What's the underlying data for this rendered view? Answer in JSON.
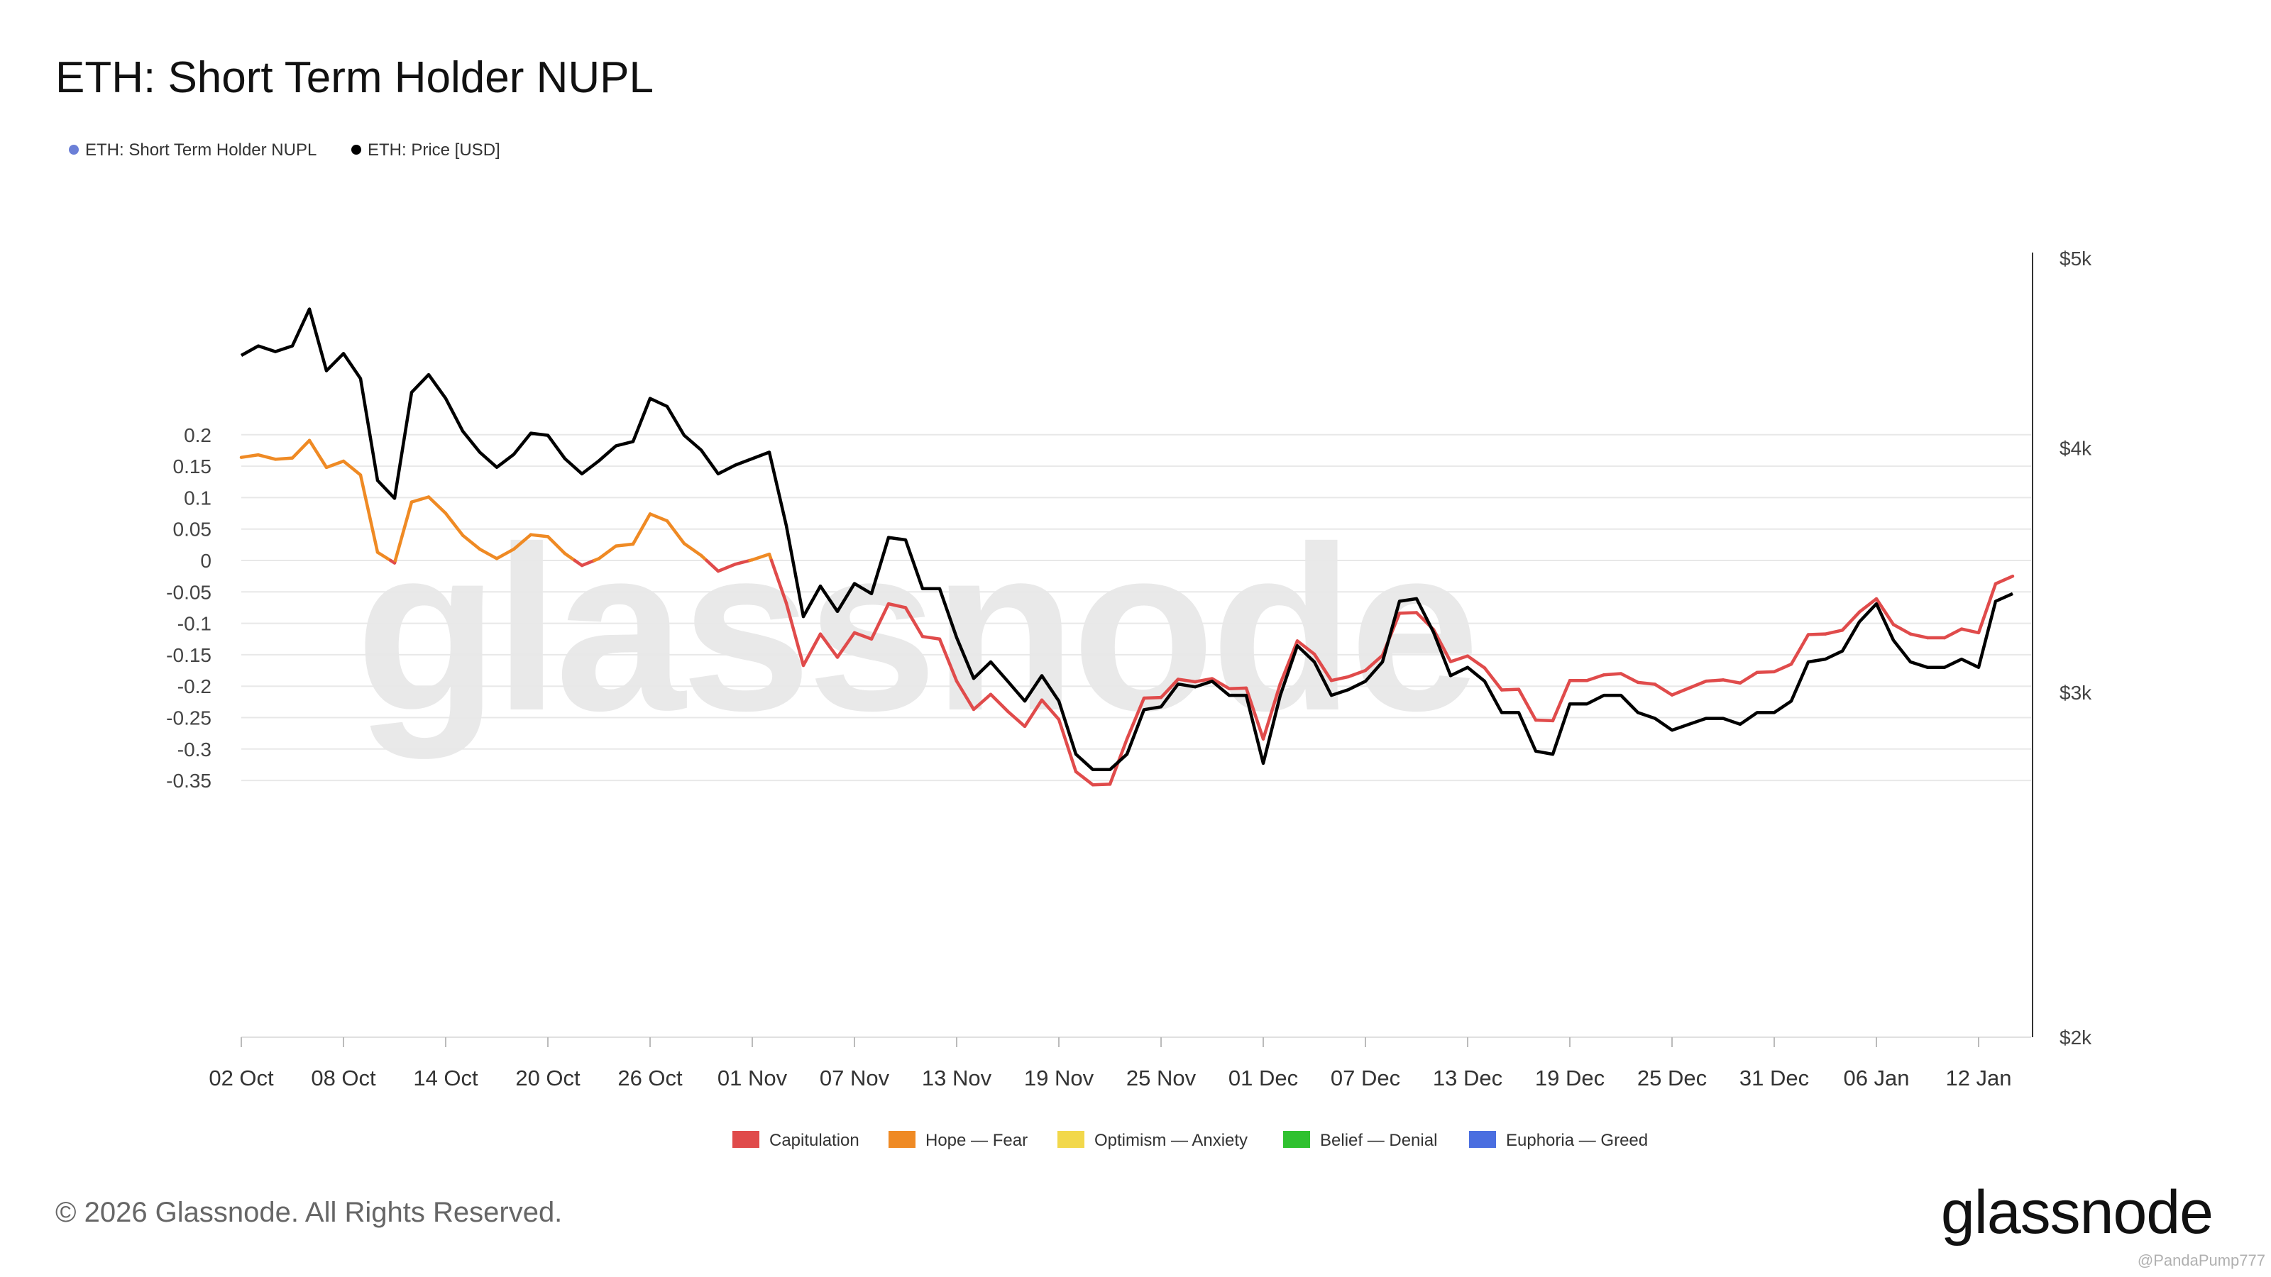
{
  "chart_data": {
    "type": "line",
    "title": "ETH: Short Term Holder NUPL",
    "legend": [
      {
        "name": "ETH: Short Term Holder NUPL",
        "color": "#6b7fd7"
      },
      {
        "name": "ETH: Price [USD]",
        "color": "#000000"
      }
    ],
    "y_left": {
      "ticks": [
        0.2,
        0.15,
        0.1,
        0.05,
        0,
        -0.05,
        -0.1,
        -0.15,
        -0.2,
        -0.25,
        -0.3,
        -0.35
      ],
      "tick_labels": [
        "0.2",
        "0.15",
        "0.1",
        "0.05",
        "0",
        "-0.05",
        "-0.1",
        "-0.15",
        "-0.2",
        "-0.25",
        "-0.3",
        "-0.35"
      ],
      "range": [
        -0.39,
        0.22
      ],
      "grid": true
    },
    "y_right": {
      "scale": "log",
      "ticks": [
        5000,
        4000,
        3000,
        2000
      ],
      "tick_labels": [
        "$5k",
        "$4k",
        "$3k",
        "$2k"
      ],
      "range": [
        2000,
        5000
      ]
    },
    "x_ticks": [
      "02 Oct",
      "08 Oct",
      "14 Oct",
      "20 Oct",
      "26 Oct",
      "01 Nov",
      "07 Nov",
      "13 Nov",
      "19 Nov",
      "25 Nov",
      "01 Dec",
      "07 Dec",
      "13 Dec",
      "19 Dec",
      "25 Dec",
      "31 Dec",
      "06 Jan",
      "12 Jan"
    ],
    "x_start": "2025-10-02",
    "days": 107,
    "series": [
      {
        "name": "ETH: Short Term Holder NUPL",
        "values": [
          0.164,
          0.168,
          0.161,
          0.163,
          0.191,
          0.148,
          0.158,
          0.136,
          0.013,
          -0.004,
          0.093,
          0.101,
          0.075,
          0.04,
          0.018,
          0.003,
          0.018,
          0.041,
          0.038,
          0.011,
          -0.008,
          0.003,
          0.023,
          0.026,
          0.074,
          0.063,
          0.027,
          0.008,
          -0.017,
          -0.006,
          0.001,
          0.01,
          -0.068,
          -0.167,
          -0.117,
          -0.154,
          -0.115,
          -0.125,
          -0.069,
          -0.075,
          -0.121,
          -0.125,
          -0.192,
          -0.237,
          -0.213,
          -0.24,
          -0.264,
          -0.222,
          -0.253,
          -0.336,
          -0.357,
          -0.356,
          -0.284,
          -0.219,
          -0.218,
          -0.189,
          -0.193,
          -0.188,
          -0.204,
          -0.203,
          -0.284,
          -0.196,
          -0.128,
          -0.149,
          -0.191,
          -0.185,
          -0.175,
          -0.151,
          -0.084,
          -0.083,
          -0.11,
          -0.161,
          -0.152,
          -0.171,
          -0.206,
          -0.205,
          -0.254,
          -0.255,
          -0.191,
          -0.191,
          -0.182,
          -0.18,
          -0.194,
          -0.197,
          -0.214,
          -0.203,
          -0.192,
          -0.19,
          -0.195,
          -0.178,
          -0.177,
          -0.165,
          -0.118,
          -0.117,
          -0.111,
          -0.082,
          -0.061,
          -0.102,
          -0.117,
          -0.123,
          -0.123,
          -0.109,
          -0.115,
          -0.037,
          -0.025
        ],
        "band_colors": {
          "capitulation": "#e04b4b",
          "hope_fear": "#ef8a24"
        }
      },
      {
        "name": "ETH: Price [USD]",
        "values": [
          4460,
          4510,
          4480,
          4510,
          4710,
          4380,
          4470,
          4340,
          3850,
          3770,
          4270,
          4360,
          4240,
          4080,
          3980,
          3910,
          3970,
          4070,
          4060,
          3950,
          3880,
          3940,
          4010,
          4030,
          4240,
          4200,
          4060,
          3990,
          3880,
          3920,
          3950,
          3980,
          3650,
          3280,
          3400,
          3300,
          3410,
          3370,
          3600,
          3590,
          3390,
          3390,
          3200,
          3050,
          3110,
          3040,
          2970,
          3060,
          2970,
          2790,
          2740,
          2740,
          2790,
          2940,
          2950,
          3030,
          3020,
          3040,
          2990,
          2990,
          2760,
          2990,
          3170,
          3110,
          2990,
          3010,
          3040,
          3110,
          3340,
          3350,
          3220,
          3060,
          3090,
          3040,
          2930,
          2930,
          2800,
          2790,
          2960,
          2960,
          2990,
          2990,
          2930,
          2910,
          2870,
          2890,
          2910,
          2910,
          2890,
          2930,
          2930,
          2970,
          3110,
          3120,
          3150,
          3260,
          3330,
          3190,
          3110,
          3090,
          3090,
          3120,
          3090,
          3340,
          3370
        ]
      }
    ],
    "band_legend": [
      {
        "label": "Capitulation",
        "color": "#e04b4b"
      },
      {
        "label": "Hope — Fear",
        "color": "#ef8a24"
      },
      {
        "label": "Optimism — Anxiety",
        "color": "#f2d84b"
      },
      {
        "label": "Belief — Denial",
        "color": "#2fc12f"
      },
      {
        "label": "Euphoria — Greed",
        "color": "#4a6ee0"
      }
    ]
  },
  "watermark": "glassnode",
  "footer": {
    "copyright": "© 2026 Glassnode. All Rights Reserved.",
    "logo": "glassnode",
    "credit": "@PandaPump777"
  }
}
